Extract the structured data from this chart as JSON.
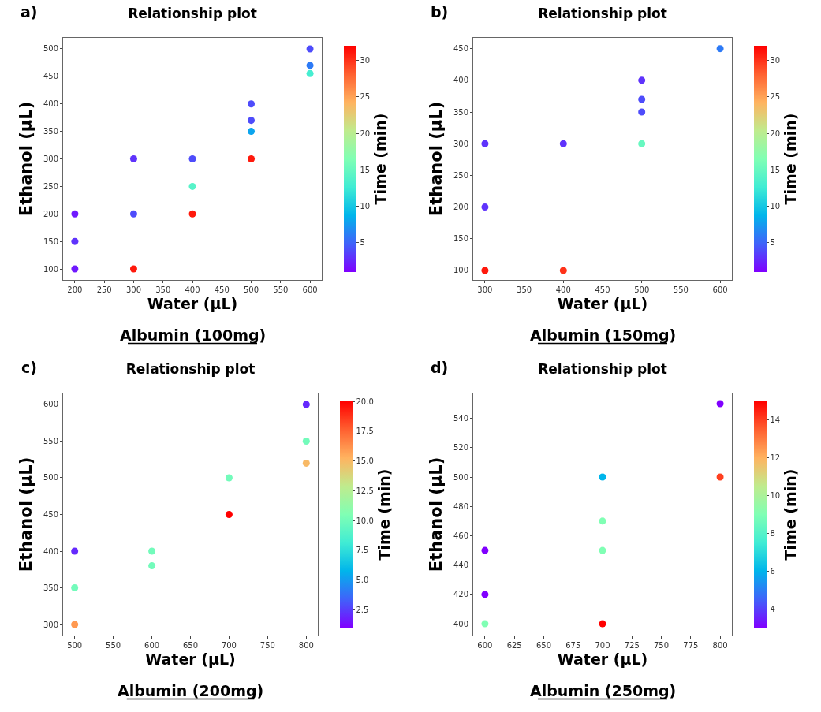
{
  "chart_data": [
    {
      "type": "scatter",
      "title": "Relationship plot",
      "subtitle": "Albumin (100mg)",
      "xlabel": "Water (µL)",
      "ylabel": "Ethanol (µL)",
      "clabel": "Time (min)",
      "annotations": [
        "a)"
      ],
      "marker": "circle",
      "grid": false,
      "x": [
        200,
        200,
        200,
        300,
        300,
        300,
        400,
        400,
        400,
        500,
        500,
        500,
        500,
        600,
        600,
        600
      ],
      "values": [
        100,
        150,
        200,
        100,
        200,
        300,
        200,
        250,
        300,
        300,
        350,
        370,
        400,
        455,
        470,
        500
      ],
      "cvalues": [
        2,
        3,
        2,
        31,
        4,
        3,
        31,
        14,
        4,
        31,
        8,
        4,
        4,
        13,
        6,
        4
      ],
      "xlim": [
        180,
        620
      ],
      "xticks": [
        200,
        250,
        300,
        350,
        400,
        450,
        500,
        550,
        600
      ],
      "ylim": [
        80,
        520
      ],
      "yticks": [
        100,
        150,
        200,
        250,
        300,
        350,
        400,
        450,
        500
      ],
      "clim": [
        1,
        32
      ],
      "cticks": [
        5,
        10,
        15,
        20,
        25,
        30
      ]
    },
    {
      "type": "scatter",
      "title": "Relationship plot",
      "subtitle": "Albumin (150mg)",
      "xlabel": "Water (µL)",
      "ylabel": "Ethanol (µL)",
      "clabel": "Time (min)",
      "annotations": [
        "b)"
      ],
      "marker": "circle",
      "grid": false,
      "x": [
        300,
        300,
        300,
        400,
        400,
        500,
        500,
        500,
        500,
        600
      ],
      "values": [
        100,
        200,
        300,
        100,
        300,
        300,
        350,
        370,
        400,
        450
      ],
      "cvalues": [
        31,
        3,
        3,
        30,
        3,
        15,
        4,
        4,
        3,
        6
      ],
      "xlim": [
        285,
        615
      ],
      "xticks": [
        300,
        350,
        400,
        450,
        500,
        550,
        600
      ],
      "ylim": [
        85,
        467
      ],
      "yticks": [
        100,
        150,
        200,
        250,
        300,
        350,
        400,
        450
      ],
      "clim": [
        1,
        32
      ],
      "cticks": [
        5,
        10,
        15,
        20,
        25,
        30
      ]
    },
    {
      "type": "scatter",
      "title": "Relationship plot",
      "subtitle": "Albumin (200mg)",
      "xlabel": "Water (µL)",
      "ylabel": "Ethanol (µL)",
      "clabel": "Time (min)",
      "annotations": [
        "c)"
      ],
      "marker": "circle",
      "grid": false,
      "x": [
        500,
        500,
        500,
        600,
        600,
        700,
        700,
        800,
        800,
        800
      ],
      "values": [
        300,
        350,
        400,
        380,
        400,
        450,
        500,
        520,
        550,
        600
      ],
      "cvalues": [
        16,
        10,
        2,
        10,
        10,
        20,
        10,
        15,
        10,
        2
      ],
      "xlim": [
        485,
        815
      ],
      "xticks": [
        500,
        550,
        600,
        650,
        700,
        750,
        800
      ],
      "ylim": [
        285,
        615
      ],
      "yticks": [
        300,
        350,
        400,
        450,
        500,
        550,
        600
      ],
      "clim": [
        1,
        20
      ],
      "cticks": [
        {
          "value": 2.5,
          "label": "2.5"
        },
        {
          "value": 5,
          "label": "5.0"
        },
        {
          "value": 7.5,
          "label": "7.5"
        },
        {
          "value": 10,
          "label": "10.0"
        },
        {
          "value": 12.5,
          "label": "12.5"
        },
        {
          "value": 15,
          "label": "15.0"
        },
        {
          "value": 17.5,
          "label": "17.5"
        },
        {
          "value": 20,
          "label": "20.0"
        }
      ]
    },
    {
      "type": "scatter",
      "title": "Relationship plot",
      "subtitle": "Albumin (250mg)",
      "xlabel": "Water (µL)",
      "ylabel": "Ethanol (µL)",
      "clabel": "Time (min)",
      "annotations": [
        "d)"
      ],
      "marker": "circle",
      "grid": false,
      "x": [
        600,
        600,
        600,
        700,
        700,
        700,
        700,
        800,
        800
      ],
      "values": [
        400,
        420,
        450,
        400,
        450,
        470,
        500,
        500,
        550
      ],
      "cvalues": [
        9,
        3,
        3,
        15,
        9,
        9,
        6,
        14,
        3
      ],
      "xlim": [
        590,
        810
      ],
      "xticks": [
        600,
        625,
        650,
        675,
        700,
        725,
        750,
        775,
        800
      ],
      "ylim": [
        392,
        557
      ],
      "yticks": [
        400,
        420,
        440,
        460,
        480,
        500,
        520,
        540
      ],
      "clim": [
        3,
        15
      ],
      "cticks": [
        4,
        6,
        8,
        10,
        12,
        14
      ]
    }
  ]
}
